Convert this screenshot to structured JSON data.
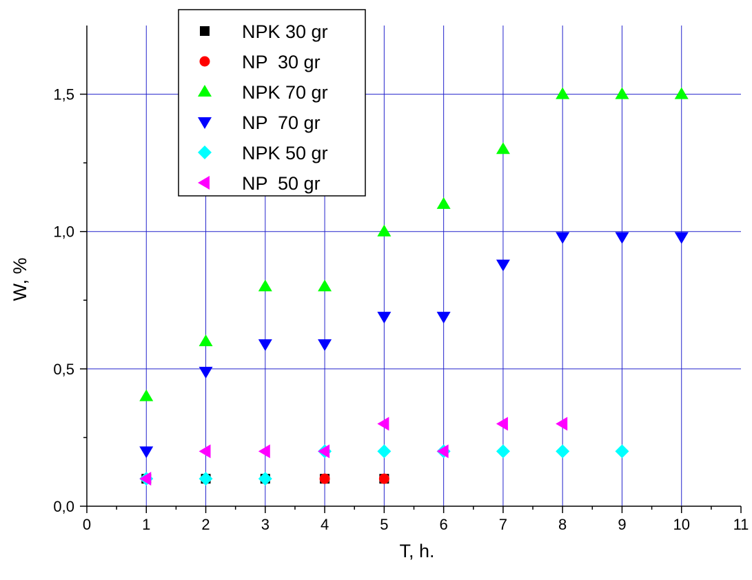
{
  "chart_data": {
    "type": "scatter",
    "title": "",
    "xlabel": "T, h.",
    "ylabel": "W, %",
    "xlim": [
      0,
      11
    ],
    "ylim": [
      0,
      1.75
    ],
    "x_ticks": [
      "0",
      "1",
      "2",
      "3",
      "4",
      "5",
      "6",
      "7",
      "8",
      "9",
      "10",
      "11"
    ],
    "y_ticks": [
      "0,0",
      "0,5",
      "1,0",
      "1,5"
    ],
    "grid": "on",
    "grid_color": "#2222cc",
    "legend_position": "top-left",
    "series": [
      {
        "name": "NPK 30 gr",
        "marker": "square",
        "color": "#000000",
        "points": [
          [
            1,
            0.1
          ],
          [
            2,
            0.1
          ],
          [
            3,
            0.1
          ],
          [
            4,
            0.1
          ],
          [
            5,
            0.1
          ]
        ]
      },
      {
        "name": "NP  30 gr",
        "marker": "circle",
        "color": "#ff0000",
        "points": [
          [
            4,
            0.1
          ],
          [
            5,
            0.1
          ]
        ]
      },
      {
        "name": "NPK 70 gr",
        "marker": "triangle-up",
        "color": "#00ff00",
        "points": [
          [
            1,
            0.4
          ],
          [
            2,
            0.6
          ],
          [
            3,
            0.8
          ],
          [
            4,
            0.8
          ],
          [
            5,
            1.0
          ],
          [
            6,
            1.1
          ],
          [
            7,
            1.3
          ],
          [
            8,
            1.5
          ],
          [
            9,
            1.5
          ],
          [
            10,
            1.5
          ]
        ]
      },
      {
        "name": "NP  70 gr",
        "marker": "triangle-down",
        "color": "#0000ff",
        "points": [
          [
            1,
            0.2
          ],
          [
            2,
            0.49
          ],
          [
            3,
            0.59
          ],
          [
            4,
            0.59
          ],
          [
            5,
            0.69
          ],
          [
            6,
            0.69
          ],
          [
            7,
            0.88
          ],
          [
            8,
            0.98
          ],
          [
            9,
            0.98
          ],
          [
            10,
            0.98
          ]
        ]
      },
      {
        "name": "NPK 50 gr",
        "marker": "diamond",
        "color": "#00ffff",
        "points": [
          [
            1,
            0.1
          ],
          [
            2,
            0.1
          ],
          [
            3,
            0.1
          ],
          [
            4,
            0.2
          ],
          [
            5,
            0.2
          ],
          [
            6,
            0.2
          ],
          [
            7,
            0.2
          ],
          [
            8,
            0.2
          ],
          [
            9,
            0.2
          ]
        ]
      },
      {
        "name": "NP  50 gr",
        "marker": "triangle-left",
        "color": "#ff00ff",
        "points": [
          [
            1,
            0.1
          ],
          [
            2,
            0.2
          ],
          [
            3,
            0.2
          ],
          [
            4,
            0.2
          ],
          [
            5,
            0.3
          ],
          [
            6,
            0.2
          ],
          [
            7,
            0.3
          ],
          [
            8,
            0.3
          ]
        ]
      }
    ]
  }
}
